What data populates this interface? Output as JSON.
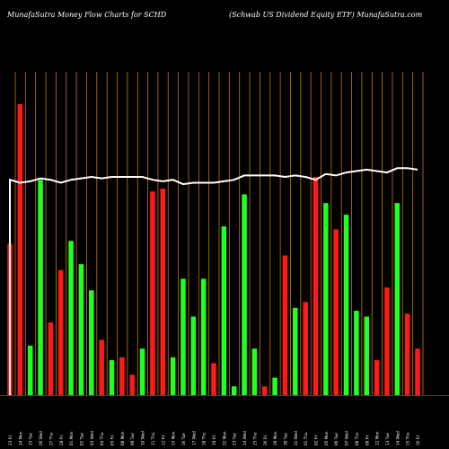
{
  "header": {
    "left": "MunafaSutra  Money Flow  Charts for SCHD",
    "right": "(Schwab US Dividend Equity ETF) MunafaSutra.com"
  },
  "chart_data": {
    "type": "bar",
    "title": "Money Flow Charts for SCHD",
    "xlabel": "",
    "ylabel": "",
    "ylim": [
      0,
      100
    ],
    "colors": {
      "up": "#22ff22",
      "down": "#ff1a1a",
      "line": "#ffffff",
      "grid": "#c87800",
      "background": "#000000"
    },
    "categories": [
      "23 Fri",
      "24 Mon",
      "25 Tue",
      "26 Wed",
      "27 Thu",
      "28 Fri",
      "01 Mon",
      "02 Tue",
      "03 Wed",
      "04 Thu",
      "05 Fri",
      "08 Mon",
      "09 Tue",
      "10 Wed",
      "11 Thu",
      "12 Fri",
      "15 Mon",
      "16 Tue",
      "17 Wed",
      "18 Thu",
      "19 Fri",
      "22 Mon",
      "23 Tue",
      "24 Wed",
      "25 Thu",
      "26 Fri",
      "29 Mon",
      "30 Tue",
      "31 Wed",
      "01 Thu",
      "02 Fri",
      "05 Mon",
      "06 Tue",
      "07 Wed",
      "08 Thu",
      "09 Fri",
      "12 Mon",
      "13 Tue",
      "14 Wed",
      "15 Thu",
      "16 Fri"
    ],
    "series": [
      {
        "role": "bars",
        "values": [
          52,
          100,
          17,
          74,
          25,
          43,
          53,
          45,
          36,
          19,
          12,
          13,
          7,
          16,
          70,
          71,
          13,
          40,
          27,
          40,
          11,
          58,
          3,
          69,
          16,
          3,
          6,
          48,
          30,
          32,
          75,
          66,
          57,
          62,
          29,
          27,
          12,
          37,
          66,
          28,
          16
        ],
        "directions": [
          "down",
          "down",
          "up",
          "up",
          "down",
          "down",
          "up",
          "up",
          "up",
          "down",
          "up",
          "down",
          "down",
          "up",
          "down",
          "down",
          "up",
          "up",
          "up",
          "up",
          "down",
          "up",
          "up",
          "up",
          "up",
          "down",
          "up",
          "down",
          "up",
          "down",
          "down",
          "up",
          "down",
          "up",
          "up",
          "up",
          "down",
          "down",
          "up",
          "down",
          "down"
        ]
      },
      {
        "role": "line",
        "values": [
          74,
          73,
          73.5,
          74.5,
          74,
          73,
          74,
          74.5,
          75,
          74.5,
          75,
          75,
          75,
          75,
          74,
          73.5,
          74,
          72.5,
          73,
          73,
          73,
          73.5,
          74,
          75.5,
          75.5,
          75.5,
          75.5,
          75,
          75.5,
          75,
          74,
          76,
          75.5,
          76.5,
          77,
          77.5,
          77,
          76.5,
          78,
          78,
          77.5
        ]
      }
    ]
  }
}
